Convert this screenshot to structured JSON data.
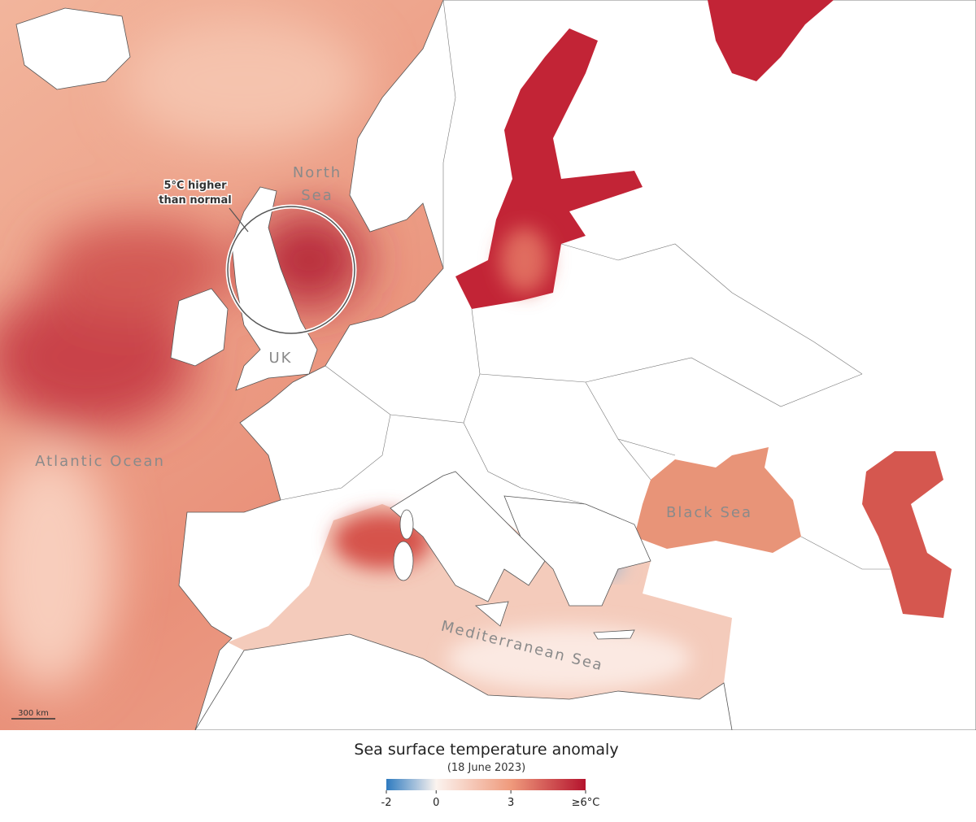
{
  "map": {
    "labels": {
      "north_sea": [
        "North",
        "Sea"
      ],
      "annotation": [
        "5°C higher",
        "than normal"
      ],
      "uk": "UK",
      "atlantic": "Atlantic Ocean",
      "black_sea": "Black Sea",
      "mediterranean": "Mediterranean Sea",
      "scale": "300 km"
    }
  },
  "legend": {
    "title": "Sea surface temperature anomaly",
    "subtitle": "(18 June 2023)",
    "range": [
      -2,
      6
    ],
    "ticks": [
      -2,
      0,
      3,
      {
        "value": 6,
        "label": "≥6°C"
      }
    ],
    "colors": [
      "#2f7bc0",
      "#fbf3ef",
      "#ef9a7c",
      "#b5142e"
    ]
  }
}
